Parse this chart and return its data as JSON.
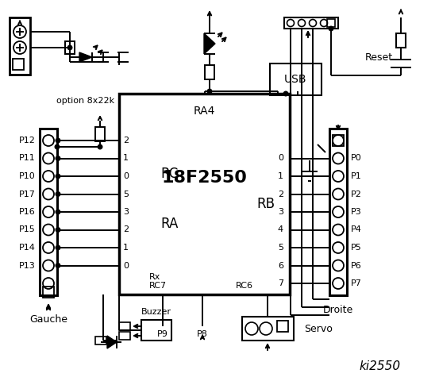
{
  "bg": "#ffffff",
  "fg": "#000000",
  "title": "ki2550",
  "chip_label": "18F2550",
  "ra4_label": "RA4",
  "rc_label": "RC",
  "ra_label": "RA",
  "rb_label": "RB",
  "rx_label": "Rx",
  "rc7_label": "RC7",
  "rc6_label": "RC6",
  "left_pins": [
    "P12",
    "P11",
    "P10",
    "P17",
    "P16",
    "P15",
    "P14",
    "P13"
  ],
  "right_pins": [
    "P0",
    "P1",
    "P2",
    "P3",
    "P4",
    "P5",
    "P6",
    "P7"
  ],
  "rc_nums": [
    "2",
    "1",
    "0",
    "5",
    "3",
    "2",
    "1",
    "0"
  ],
  "rb_nums": [
    "0",
    "1",
    "2",
    "3",
    "4",
    "5",
    "6",
    "7"
  ],
  "gauche_label": "Gauche",
  "droite_label": "Droite",
  "buzzer_label": "Buzzer",
  "p8_label": "P8",
  "p9_label": "P9",
  "servo_label": "Servo",
  "reset_label": "Reset",
  "usb_label": "USB",
  "option_label": "option 8x22k"
}
